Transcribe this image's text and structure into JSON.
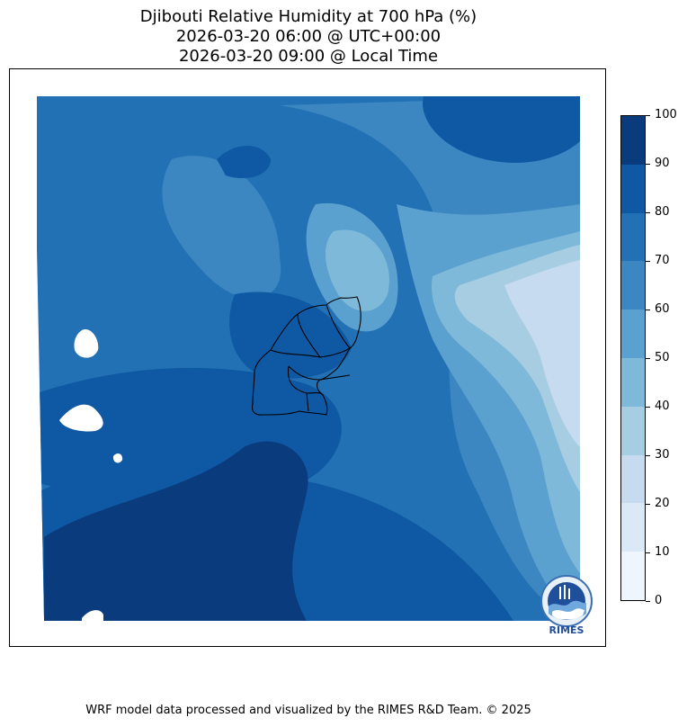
{
  "header": {
    "title_line1": "Djibouti Relative Humidity at 700 hPa (%)",
    "title_line2": "2026-03-20 06:00 @ UTC+00:00",
    "title_line3": "2026-03-20 09:00 @ Local Time"
  },
  "colorbar": {
    "levels": [
      0,
      10,
      20,
      30,
      40,
      50,
      60,
      70,
      80,
      90,
      100
    ],
    "tick_labels": [
      "0",
      "10",
      "20",
      "30",
      "40",
      "50",
      "60",
      "70",
      "80",
      "90",
      "100"
    ],
    "colors": [
      "#eef5fc",
      "#dbe9f6",
      "#c6dbef",
      "#a7cde3",
      "#7fb9da",
      "#5aa1cf",
      "#3c87c1",
      "#2271b5",
      "#0f58a3",
      "#093b7d"
    ]
  },
  "map": {
    "variable": "relative-humidity",
    "logo_text": "RIMES"
  },
  "footer": {
    "credit": "WRF model data processed and visualized by the RIMES R&D Team. © 2025"
  }
}
